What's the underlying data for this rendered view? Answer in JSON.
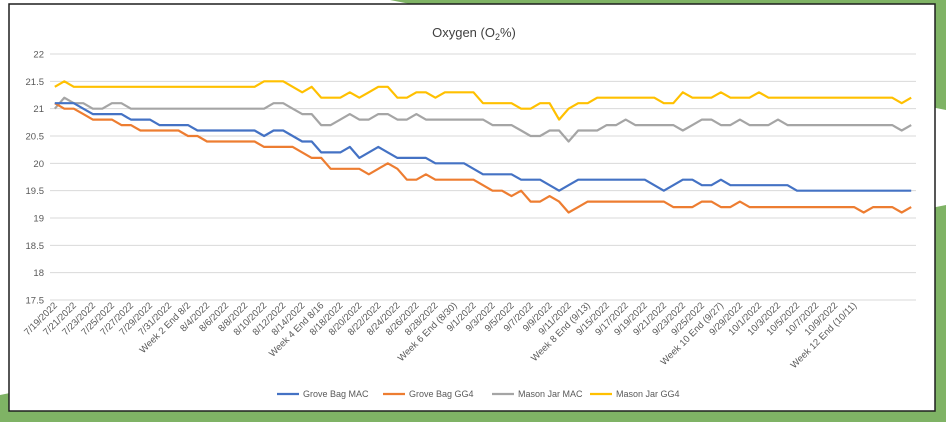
{
  "colors": {
    "background_accent": "#7fb365",
    "frame": "#1f1f1f",
    "grid": "#d9d9d9"
  },
  "chart_data": {
    "type": "line",
    "title_main": "Oxygen (O",
    "title_sub": "2",
    "title_tail": "%)",
    "xlabel": "",
    "ylabel": "",
    "ylim": [
      17.5,
      22
    ],
    "yticks": [
      17.5,
      18,
      18.5,
      19,
      19.5,
      20,
      20.5,
      21,
      21.5,
      22
    ],
    "grid": true,
    "legend_position": "bottom",
    "x_tick_labels": [
      "7/19/2022",
      "7/21/2022",
      "7/23/2022",
      "7/25/2022",
      "7/27/2022",
      "7/29/2022",
      "7/31/2022",
      "Week 2 End 8/2",
      "8/4/2022",
      "8/6/2022",
      "8/8/2022",
      "8/10/2022",
      "8/12/2022",
      "8/14/2022",
      "Week 4 End 8/16",
      "8/18/2022",
      "8/20/2022",
      "8/22/2022",
      "8/24/2022",
      "8/26/2022",
      "8/28/2022",
      "Week 6 End (8/30)",
      "9/1/2022",
      "9/3/2022",
      "9/5/2022",
      "9/7/2022",
      "9/9/2022",
      "9/11/2022",
      "Week 8 End (9/13)",
      "9/15/2022",
      "9/17/2022",
      "9/19/2022",
      "9/21/2022",
      "9/23/2022",
      "9/25/2022",
      "Week 10 End (9/27)",
      "9/29/2022",
      "10/1/2022",
      "10/3/2022",
      "10/5/2022",
      "10/7/2022",
      "10/9/2022",
      "Week 12 End (10/11)"
    ],
    "series": [
      {
        "name": "Grove Bag MAC",
        "color": "#4472c4",
        "values": [
          21.1,
          21.1,
          21.1,
          21,
          20.9,
          20.9,
          20.9,
          20.9,
          20.8,
          20.8,
          20.8,
          20.7,
          20.7,
          20.7,
          20.7,
          20.6,
          20.6,
          20.6,
          20.6,
          20.6,
          20.6,
          20.6,
          20.5,
          20.6,
          20.6,
          20.5,
          20.4,
          20.4,
          20.2,
          20.2,
          20.2,
          20.3,
          20.1,
          20.2,
          20.3,
          20.2,
          20.1,
          20.1,
          20.1,
          20.1,
          20,
          20,
          20,
          20,
          19.9,
          19.8,
          19.8,
          19.8,
          19.8,
          19.7,
          19.7,
          19.7,
          19.6,
          19.5,
          19.6,
          19.7,
          19.7,
          19.7,
          19.7,
          19.7,
          19.7,
          19.7,
          19.7,
          19.6,
          19.5,
          19.6,
          19.7,
          19.7,
          19.6,
          19.6,
          19.7,
          19.6,
          19.6,
          19.6,
          19.6,
          19.6,
          19.6,
          19.6,
          19.5,
          19.5,
          19.5,
          19.5,
          19.5,
          19.5,
          19.5,
          19.5,
          19.5,
          19.5,
          19.5,
          19.5,
          19.5
        ]
      },
      {
        "name": "Grove Bag GG4",
        "color": "#ed7d31",
        "values": [
          21.1,
          21,
          21,
          20.9,
          20.8,
          20.8,
          20.8,
          20.7,
          20.7,
          20.6,
          20.6,
          20.6,
          20.6,
          20.6,
          20.5,
          20.5,
          20.4,
          20.4,
          20.4,
          20.4,
          20.4,
          20.4,
          20.3,
          20.3,
          20.3,
          20.3,
          20.2,
          20.1,
          20.1,
          19.9,
          19.9,
          19.9,
          19.9,
          19.8,
          19.9,
          20,
          19.9,
          19.7,
          19.7,
          19.8,
          19.7,
          19.7,
          19.7,
          19.7,
          19.7,
          19.6,
          19.5,
          19.5,
          19.4,
          19.5,
          19.3,
          19.3,
          19.4,
          19.3,
          19.1,
          19.2,
          19.3,
          19.3,
          19.3,
          19.3,
          19.3,
          19.3,
          19.3,
          19.3,
          19.3,
          19.2,
          19.2,
          19.2,
          19.3,
          19.3,
          19.2,
          19.2,
          19.3,
          19.2,
          19.2,
          19.2,
          19.2,
          19.2,
          19.2,
          19.2,
          19.2,
          19.2,
          19.2,
          19.2,
          19.2,
          19.1,
          19.2,
          19.2,
          19.2,
          19.1,
          19.2
        ]
      },
      {
        "name": "Mason Jar MAC",
        "color": "#a5a5a5",
        "values": [
          21,
          21.2,
          21.1,
          21.1,
          21,
          21,
          21.1,
          21.1,
          21,
          21,
          21,
          21,
          21,
          21,
          21,
          21,
          21,
          21,
          21,
          21,
          21,
          21,
          21,
          21.1,
          21.1,
          21,
          20.9,
          20.9,
          20.7,
          20.7,
          20.8,
          20.9,
          20.8,
          20.8,
          20.9,
          20.9,
          20.8,
          20.8,
          20.9,
          20.8,
          20.8,
          20.8,
          20.8,
          20.8,
          20.8,
          20.8,
          20.7,
          20.7,
          20.7,
          20.6,
          20.5,
          20.5,
          20.6,
          20.6,
          20.4,
          20.6,
          20.6,
          20.6,
          20.7,
          20.7,
          20.8,
          20.7,
          20.7,
          20.7,
          20.7,
          20.7,
          20.6,
          20.7,
          20.8,
          20.8,
          20.7,
          20.7,
          20.8,
          20.7,
          20.7,
          20.7,
          20.8,
          20.7,
          20.7,
          20.7,
          20.7,
          20.7,
          20.7,
          20.7,
          20.7,
          20.7,
          20.7,
          20.7,
          20.7,
          20.6,
          20.7
        ]
      },
      {
        "name": "Mason Jar GG4",
        "color": "#ffc000",
        "values": [
          21.4,
          21.5,
          21.4,
          21.4,
          21.4,
          21.4,
          21.4,
          21.4,
          21.4,
          21.4,
          21.4,
          21.4,
          21.4,
          21.4,
          21.4,
          21.4,
          21.4,
          21.4,
          21.4,
          21.4,
          21.4,
          21.4,
          21.5,
          21.5,
          21.5,
          21.4,
          21.3,
          21.4,
          21.2,
          21.2,
          21.2,
          21.3,
          21.2,
          21.3,
          21.4,
          21.4,
          21.2,
          21.2,
          21.3,
          21.3,
          21.2,
          21.3,
          21.3,
          21.3,
          21.3,
          21.1,
          21.1,
          21.1,
          21.1,
          21,
          21,
          21.1,
          21.1,
          20.8,
          21,
          21.1,
          21.1,
          21.2,
          21.2,
          21.2,
          21.2,
          21.2,
          21.2,
          21.2,
          21.1,
          21.1,
          21.3,
          21.2,
          21.2,
          21.2,
          21.3,
          21.2,
          21.2,
          21.2,
          21.3,
          21.2,
          21.2,
          21.2,
          21.2,
          21.2,
          21.2,
          21.2,
          21.2,
          21.2,
          21.2,
          21.2,
          21.2,
          21.2,
          21.2,
          21.1,
          21.2
        ]
      }
    ]
  }
}
